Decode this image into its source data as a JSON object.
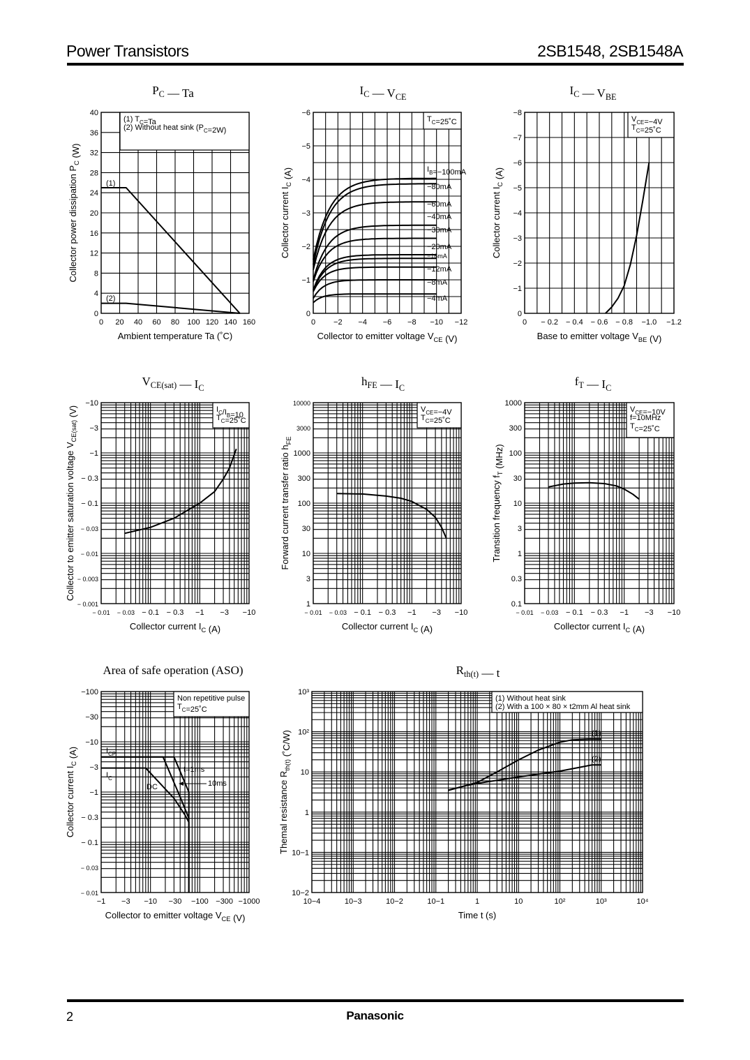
{
  "header": {
    "left": "Power Transistors",
    "right": "2SB1548, 2SB1548A"
  },
  "footer": {
    "page": "2",
    "brand": "Panasonic"
  },
  "chart_data": [
    {
      "id": "pc-ta",
      "type": "line",
      "title": "PC — Ta",
      "title_main": "P",
      "title_sub": "C",
      "title_rest": " — Ta",
      "xlabel": "Ambient temperature   Ta   (˚C)",
      "ylabel": "Collector power dissipation   PC   (W)",
      "xscale": "linear",
      "yscale": "linear",
      "xlim": [
        0,
        160
      ],
      "ylim": [
        0,
        40
      ],
      "xticks": [
        0,
        20,
        40,
        60,
        80,
        100,
        120,
        140,
        160
      ],
      "xtick_labels": [
        "0",
        "20",
        "40",
        "60",
        "80",
        "100",
        "120",
        "140",
        "160"
      ],
      "yticks": [
        0,
        4,
        8,
        12,
        16,
        20,
        24,
        28,
        32,
        36,
        40
      ],
      "ytick_labels": [
        "0",
        "4",
        "8",
        "12",
        "16",
        "20",
        "24",
        "28",
        "32",
        "36",
        "40"
      ],
      "legend": [
        "(1) TC=Ta",
        "(2) Without heat sink (PC=2W)"
      ],
      "legend_position": "top-right",
      "series": [
        {
          "name": "(1)",
          "x": [
            0,
            27,
            150
          ],
          "y": [
            25,
            25,
            0
          ]
        },
        {
          "name": "(2)",
          "x": [
            0,
            27,
            150
          ],
          "y": [
            2,
            2,
            0
          ]
        }
      ]
    },
    {
      "id": "ic-vce",
      "type": "line",
      "title": "IC — VCE",
      "xlabel": "Collector to emitter voltage   VCE   (V)",
      "ylabel": "Collector current   IC   (A)",
      "xscale": "linear",
      "yscale": "linear",
      "xlim": [
        0,
        -12
      ],
      "ylim": [
        0,
        -6
      ],
      "xticks": [
        0,
        -2,
        -4,
        -6,
        -8,
        -10,
        -12
      ],
      "xtick_labels": [
        "0",
        "−2",
        "−4",
        "−6",
        "−8",
        "−10",
        "−12"
      ],
      "yticks": [
        0,
        -1,
        -2,
        -3,
        -4,
        -5,
        -6
      ],
      "ytick_labels": [
        "0",
        "−1",
        "−2",
        "−3",
        "−4",
        "−5",
        "−6"
      ],
      "annotation": "TC=25˚C",
      "series": [
        {
          "name": "IB=−100mA",
          "label": "IB=−100mA",
          "sat": -4.03,
          "y0": -1.6,
          "k": 0.75
        },
        {
          "name": "−80mA",
          "label": "−80mA",
          "sat": -3.87,
          "y0": -1.45,
          "k": 0.75
        },
        {
          "name": "−60mA",
          "label": "−60mA",
          "sat": -3.33,
          "y0": -1.3,
          "k": 0.8
        },
        {
          "name": "−40mA",
          "label": "−40mA",
          "sat": -2.63,
          "y0": -1.0,
          "k": 0.85
        },
        {
          "name": "−30mA",
          "label": "−30mA",
          "sat": -2.24,
          "y0": -0.95,
          "k": 0.9
        },
        {
          "name": "−20mA",
          "label": "−20mA",
          "sat": -1.75,
          "y0": -0.7,
          "k": 1.0
        },
        {
          "name": "−16mA",
          "label": "−16mA",
          "sat": -1.64,
          "y0": -0.68,
          "k": 1.0
        },
        {
          "name": "−12mA",
          "label": "−12mA",
          "sat": -1.38,
          "y0": -0.65,
          "k": 1.1
        },
        {
          "name": "−8mA",
          "label": "−8mA",
          "sat": -1.0,
          "y0": -0.45,
          "k": 1.2
        },
        {
          "name": "−4mA",
          "label": "−4mA",
          "sat": -0.58,
          "y0": -0.32,
          "k": 1.4
        }
      ]
    },
    {
      "id": "ic-vbe",
      "type": "line",
      "title": "IC — VBE",
      "xlabel": "Base to emitter voltage   VBE   (V)",
      "ylabel": "Collector current   IC   (A)",
      "xscale": "linear",
      "yscale": "linear",
      "xlim": [
        0,
        -1.2
      ],
      "ylim": [
        0,
        -8
      ],
      "xticks": [
        0,
        -0.2,
        -0.4,
        -0.6,
        -0.8,
        -1.0,
        -1.2
      ],
      "xtick_labels": [
        "0",
        "− 0.2",
        "− 0.4",
        "− 0.6",
        "− 0.8",
        "−1.0",
        "−1.2"
      ],
      "yticks": [
        0,
        -1,
        -2,
        -3,
        -4,
        -5,
        -6,
        -7,
        -8
      ],
      "ytick_labels": [
        "0",
        "−1",
        "−2",
        "−3",
        "−4",
        "−5",
        "−6",
        "−7",
        "−8"
      ],
      "annotation": [
        "VCE=−4V",
        "TC=25˚C"
      ],
      "series": [
        {
          "name": "IC",
          "x": [
            -0.65,
            -0.7,
            -0.75,
            -0.8,
            -0.85,
            -0.9,
            -0.95,
            -1.0
          ],
          "y": [
            0,
            -0.25,
            -0.6,
            -1.1,
            -1.95,
            -3.1,
            -4.5,
            -6.0
          ]
        }
      ]
    },
    {
      "id": "vcesat-ic",
      "type": "line",
      "title": "VCE(sat) — IC",
      "xlabel": "Collector current   IC   (A)",
      "ylabel": "Collector to emitter saturation voltage   VCE(sat)   (V)",
      "xscale": "log",
      "yscale": "log",
      "xlim": [
        -0.01,
        -10
      ],
      "ylim": [
        -0.001,
        -10
      ],
      "xtick_labels": [
        "− 0.01",
        "− 0.03",
        "− 0.1",
        "− 0.3",
        "−1",
        "−3",
        "−10"
      ],
      "ytick_labels": [
        "− 0.001",
        "− 0.003",
        "− 0.01",
        "− 0.03",
        "− 0.1",
        "− 0.3",
        "−1",
        "−3",
        "−10"
      ],
      "annotation": [
        "IC/IB=10",
        "TC=25˚C"
      ],
      "series": [
        {
          "name": "VCE(sat)",
          "x": [
            -0.03,
            -0.1,
            -0.3,
            -1,
            -2,
            -3,
            -4,
            -5.5
          ],
          "y": [
            -0.025,
            -0.033,
            -0.05,
            -0.1,
            -0.17,
            -0.3,
            -0.5,
            -1.2
          ]
        }
      ]
    },
    {
      "id": "hfe-ic",
      "type": "line",
      "title": "hFE — IC",
      "xlabel": "Collector current   IC   (A)",
      "ylabel": "Forward current transfer ratio   hFE",
      "xscale": "log",
      "yscale": "log",
      "xlim": [
        -0.01,
        -10
      ],
      "ylim": [
        1,
        10000
      ],
      "xtick_labels": [
        "− 0.01",
        "− 0.03",
        "− 0.1",
        "− 0.3",
        "−1",
        "−3",
        "−10"
      ],
      "ytick_labels": [
        "1",
        "3",
        "10",
        "30",
        "100",
        "300",
        "1000",
        "3000",
        "10000"
      ],
      "annotation": [
        "VCE=−4V",
        "TC=25˚C"
      ],
      "series": [
        {
          "name": "hFE",
          "x": [
            -0.03,
            -0.1,
            -0.3,
            -0.6,
            -1,
            -2,
            -3,
            -4,
            -5
          ],
          "y": [
            155,
            152,
            138,
            125,
            108,
            75,
            52,
            33,
            20
          ]
        }
      ]
    },
    {
      "id": "ft-ic",
      "type": "line",
      "title": "fT — IC",
      "xlabel": "Collector current   IC   (A)",
      "ylabel": "Transition frequency   fT   (MHz)",
      "xscale": "log",
      "yscale": "log",
      "xlim": [
        -0.01,
        -10
      ],
      "ylim": [
        0.1,
        1000
      ],
      "xtick_labels": [
        "− 0.01",
        "− 0.03",
        "− 0.1",
        "− 0.3",
        "−1",
        "−3",
        "−10"
      ],
      "ytick_labels": [
        "0.1",
        "0.3",
        "1",
        "3",
        "10",
        "30",
        "100",
        "300",
        "1000"
      ],
      "annotation": [
        "VCE=−10V",
        "f=10MHz",
        "TC=25˚C"
      ],
      "series": [
        {
          "name": "fT",
          "x": [
            -0.03,
            -0.06,
            -0.1,
            -0.2,
            -0.4,
            -0.7,
            -1,
            -1.5,
            -2
          ],
          "y": [
            21,
            24,
            25,
            25.5,
            24.5,
            22,
            19,
            15,
            12
          ]
        }
      ]
    },
    {
      "id": "aso",
      "type": "line",
      "title": "Area of safe operation (ASO)",
      "xlabel": "Collector to emitter voltage   VCE   (V)",
      "ylabel": "Collector current   IC   (A)",
      "xscale": "log",
      "yscale": "log",
      "xlim": [
        -1,
        -1000
      ],
      "ylim": [
        -0.01,
        -100
      ],
      "xtick_labels": [
        "−1",
        "−3",
        "−10",
        "−30",
        "−100",
        "−300",
        "−1000"
      ],
      "ytick_labels": [
        "− 0.01",
        "− 0.03",
        "− 0.1",
        "− 0.3",
        "−1",
        "−3",
        "−10",
        "−30",
        "−100"
      ],
      "annotation": [
        "Non repetitive pulse",
        "TC=25˚C"
      ],
      "labels": {
        "icp": "ICP",
        "ic": "IC",
        "dc": "DC",
        "t1": "t=1ms",
        "t10": "10ms"
      },
      "series": [
        {
          "name": "DC",
          "x": [
            -1,
            -8,
            -30,
            -50,
            -60,
            -60
          ],
          "y": [
            -3,
            -3,
            -0.75,
            -0.35,
            -0.25,
            -0.01
          ]
        },
        {
          "name": "10ms",
          "x": [
            -1,
            -18,
            -40,
            -60
          ],
          "y": [
            -5,
            -5,
            -0.8,
            -0.3
          ]
        },
        {
          "name": "t=1ms",
          "x": [
            -1,
            -30,
            -60,
            -60
          ],
          "y": [
            -5,
            -5,
            -1,
            -0.01
          ]
        }
      ]
    },
    {
      "id": "rth-t",
      "type": "line",
      "title": "Rth(t) — t",
      "xlabel": "Time   t   (s)",
      "ylabel": "Themal resistance   Rth(t)   (˚C/W)",
      "xscale": "log",
      "yscale": "log",
      "xlim": [
        0.0001,
        10000
      ],
      "ylim": [
        0.01,
        1000
      ],
      "xtick_labels": [
        "10−4",
        "10−3",
        "10−2",
        "10−1",
        "1",
        "10",
        "10²",
        "10³",
        "10⁴"
      ],
      "ytick_labels": [
        "10−2",
        "10−1",
        "1",
        "10",
        "10²",
        "10³"
      ],
      "legend": [
        "(1) Without heat sink",
        "(2) With a 100 × 80 × t2mm Al heat sink"
      ],
      "legend_position": "top-right",
      "series": [
        {
          "name": "(1)",
          "x": [
            0.2,
            0.5,
            1,
            3,
            10,
            30,
            100,
            200,
            500,
            1000
          ],
          "y": [
            3.5,
            4.5,
            5.5,
            10,
            20,
            35,
            55,
            63,
            65,
            65
          ]
        },
        {
          "name": "(2)",
          "x": [
            0.2,
            0.5,
            1,
            3,
            10,
            30,
            100,
            300,
            600,
            1000
          ],
          "y": [
            3.5,
            4.5,
            5.2,
            6.2,
            7.5,
            8.8,
            10.5,
            13,
            15,
            15
          ]
        }
      ]
    }
  ]
}
